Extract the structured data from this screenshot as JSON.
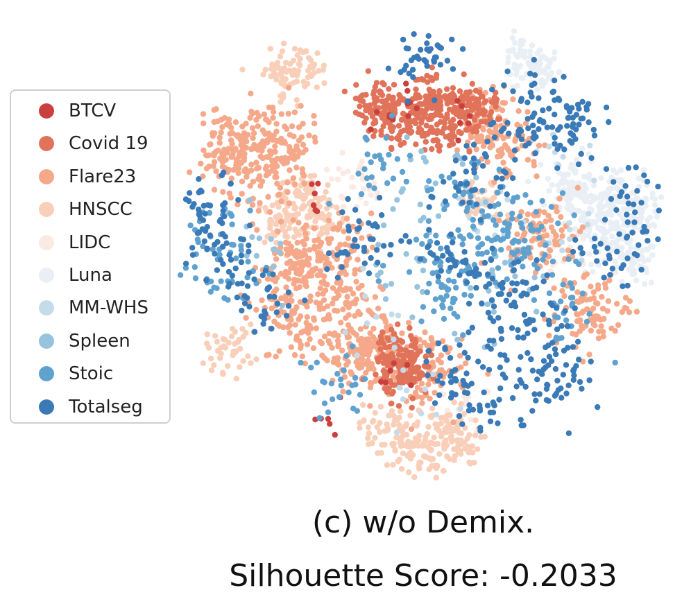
{
  "chart_data": {
    "type": "scatter",
    "title": "(c) w/o Demix.",
    "subtitle": "Silhouette Score: -0.2033",
    "xlabel": "",
    "ylabel": "",
    "axes_visible": false,
    "grid": false,
    "legend_position": "left",
    "series": [
      {
        "name": "BTCV",
        "color": "#c9403f"
      },
      {
        "name": "Covid 19",
        "color": "#e0735a"
      },
      {
        "name": "Flare23",
        "color": "#f5a98a"
      },
      {
        "name": "HNSCC",
        "color": "#f9cfb9"
      },
      {
        "name": "LIDC",
        "color": "#fbeae3"
      },
      {
        "name": "Luna",
        "color": "#e9eff4"
      },
      {
        "name": "MM-WHS",
        "color": "#c4dbea"
      },
      {
        "name": "Spleen",
        "color": "#96c4df"
      },
      {
        "name": "Stoic",
        "color": "#5fa1cf"
      },
      {
        "name": "Totalseg",
        "color": "#3a7ab7"
      }
    ],
    "clusters": [
      {
        "series": "Covid 19",
        "points": [
          [
            -15,
            64
          ],
          [
            -1,
            60
          ],
          [
            15,
            68
          ],
          [
            6,
            72
          ],
          [
            -10,
            58
          ],
          [
            20,
            62
          ],
          [
            10,
            56
          ],
          [
            -19,
            69
          ],
          [
            2,
            66
          ],
          [
            24,
            67
          ]
        ]
      },
      {
        "series": "Covid 19",
        "points": [
          [
            -8,
            -38
          ],
          [
            -6,
            -44
          ],
          [
            -9,
            -47
          ],
          [
            -5,
            -50
          ]
        ]
      },
      {
        "series": "BTCV",
        "points": [
          [
            -36,
            -70
          ],
          [
            -8,
            -49
          ],
          [
            -12,
            60
          ],
          [
            17,
            58
          ],
          [
            -44,
            26
          ],
          [
            -3,
            66
          ]
        ]
      },
      {
        "series": "Flare23",
        "points": [
          [
            -75,
            50
          ],
          [
            -60,
            36
          ],
          [
            -70,
            42
          ],
          [
            -62,
            56
          ],
          [
            -81,
            46
          ],
          [
            -55,
            46
          ],
          [
            -52,
            -2
          ],
          [
            -40,
            -10
          ],
          [
            -46,
            4
          ],
          [
            -30,
            -20
          ],
          [
            -58,
            -18
          ],
          [
            -34,
            6
          ],
          [
            -24,
            -34
          ],
          [
            -18,
            -46
          ],
          [
            -28,
            -40
          ],
          [
            -12,
            -36
          ],
          [
            -50,
            -30
          ],
          [
            30,
            55
          ],
          [
            36,
            48
          ],
          [
            26,
            64
          ],
          [
            45,
            8
          ],
          [
            54,
            12
          ],
          [
            72,
            -18
          ],
          [
            66,
            -26
          ],
          [
            -2,
            -52
          ],
          [
            5,
            -42
          ]
        ]
      },
      {
        "series": "HNSCC",
        "points": [
          [
            -52,
            22
          ],
          [
            -58,
            16
          ],
          [
            -46,
            28
          ],
          [
            -40,
            18
          ],
          [
            -5,
            -80
          ],
          [
            5,
            -84
          ],
          [
            15,
            -78
          ],
          [
            -15,
            -72
          ],
          [
            10,
            -72
          ],
          [
            25,
            24
          ],
          [
            -78,
            -38
          ],
          [
            -58,
            80
          ],
          [
            -48,
            82
          ]
        ]
      },
      {
        "series": "LIDC",
        "points": [
          [
            -22,
            30
          ],
          [
            -30,
            36
          ],
          [
            60,
            2
          ],
          [
            20,
            -64
          ]
        ]
      },
      {
        "series": "Luna",
        "points": [
          [
            42,
            86
          ],
          [
            48,
            82
          ],
          [
            62,
            28
          ],
          [
            75,
            24
          ],
          [
            82,
            30
          ],
          [
            86,
            14
          ],
          [
            78,
            4
          ],
          [
            70,
            16
          ],
          [
            88,
            -2
          ],
          [
            92,
            20
          ],
          [
            64,
            36
          ]
        ]
      },
      {
        "series": "MM-WHS",
        "points": [
          [
            4,
            -60
          ],
          [
            60,
            44
          ],
          [
            62,
            8
          ],
          [
            -20,
            -30
          ],
          [
            30,
            20
          ]
        ]
      },
      {
        "series": "Spleen",
        "points": [
          [
            -66,
            0
          ],
          [
            -10,
            -10
          ],
          [
            0,
            20
          ],
          [
            12,
            40
          ],
          [
            40,
            -4
          ],
          [
            24,
            -20
          ]
        ]
      },
      {
        "series": "Stoic",
        "points": [
          [
            5,
            0
          ],
          [
            12,
            -14
          ],
          [
            22,
            8
          ],
          [
            40,
            12
          ],
          [
            48,
            4
          ],
          [
            32,
            18
          ],
          [
            14,
            28
          ],
          [
            -18,
            40
          ],
          [
            -84,
            10
          ],
          [
            -80,
            -10
          ],
          [
            60,
            -20
          ],
          [
            -36,
            -56
          ]
        ]
      },
      {
        "series": "Totalseg",
        "points": [
          [
            42,
            60
          ],
          [
            54,
            54
          ],
          [
            52,
            70
          ],
          [
            60,
            62
          ],
          [
            -2,
            88
          ],
          [
            4,
            86
          ],
          [
            18,
            30
          ],
          [
            26,
            40
          ],
          [
            10,
            2
          ],
          [
            18,
            -4
          ],
          [
            30,
            -14
          ],
          [
            44,
            -14
          ],
          [
            52,
            -30
          ],
          [
            36,
            -32
          ],
          [
            48,
            -56
          ],
          [
            56,
            -44
          ],
          [
            -82,
            18
          ],
          [
            -88,
            24
          ],
          [
            -84,
            6
          ],
          [
            -70,
            -4
          ],
          [
            -64,
            -20
          ],
          [
            66,
            56
          ],
          [
            88,
            30
          ],
          [
            90,
            8
          ],
          [
            12,
            -48
          ],
          [
            20,
            -56
          ],
          [
            28,
            -60
          ],
          [
            -20,
            14
          ],
          [
            -26,
            4
          ],
          [
            60,
            -54
          ],
          [
            76,
            4
          ]
        ]
      }
    ]
  }
}
